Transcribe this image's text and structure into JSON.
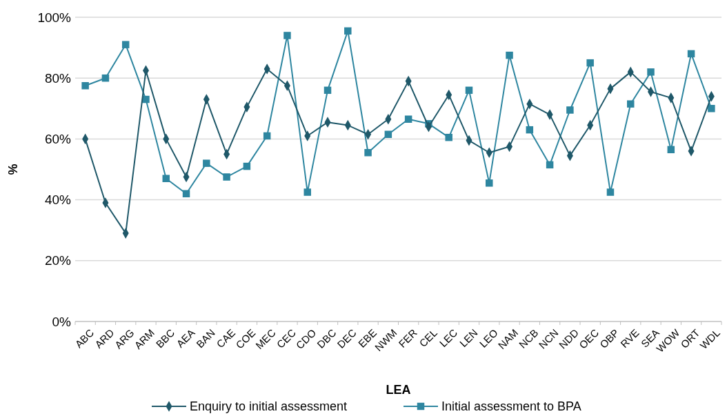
{
  "chart_data": {
    "type": "line",
    "xlabel": "LEA",
    "ylabel": "%",
    "categories": [
      "ABC",
      "ARD",
      "ARG",
      "ARM",
      "BBC",
      "AEA",
      "BAN",
      "CAE",
      "COE",
      "MEC",
      "CEC",
      "CDO",
      "DBC",
      "DEC",
      "EBE",
      "NWM",
      "FER",
      "CEL",
      "LEC",
      "LEN",
      "LEO",
      "NAM",
      "NCB",
      "NCN",
      "NDD",
      "OEC",
      "OBP",
      "RVE",
      "SEA",
      "WOW",
      "ORT",
      "WDL"
    ],
    "series": [
      {
        "name": "Enquiry to initial assessment",
        "color": "#1f5869",
        "marker": "diamond",
        "values": [
          60,
          39,
          29,
          82.5,
          60,
          47.5,
          73,
          55,
          70.5,
          83,
          77.5,
          61,
          65.5,
          64.5,
          61.5,
          66.5,
          79,
          64,
          74.5,
          59.5,
          55.5,
          57.5,
          71.5,
          68,
          54.5,
          64.5,
          76.5,
          82,
          75.5,
          73.5,
          56,
          74
        ]
      },
      {
        "name": "Initial assessment to BPA",
        "color": "#2e86a0",
        "marker": "square",
        "values": [
          77.5,
          80,
          91,
          73,
          47,
          42,
          52,
          47.5,
          51,
          61,
          94,
          42.5,
          76,
          95.5,
          55.5,
          61.5,
          66.5,
          65,
          60.5,
          76,
          45.5,
          87.5,
          63,
          51.5,
          69.5,
          85,
          42.5,
          71.5,
          82,
          56.5,
          88,
          70
        ]
      }
    ],
    "ylim": [
      0,
      100
    ],
    "yticks": [
      {
        "value": 0,
        "label": "0%"
      },
      {
        "value": 20,
        "label": "20%"
      },
      {
        "value": 40,
        "label": "40%"
      },
      {
        "value": 60,
        "label": "60%"
      },
      {
        "value": 80,
        "label": "80%"
      },
      {
        "value": 100,
        "label": "100%"
      }
    ],
    "grid": "y",
    "legend": "bottom"
  }
}
